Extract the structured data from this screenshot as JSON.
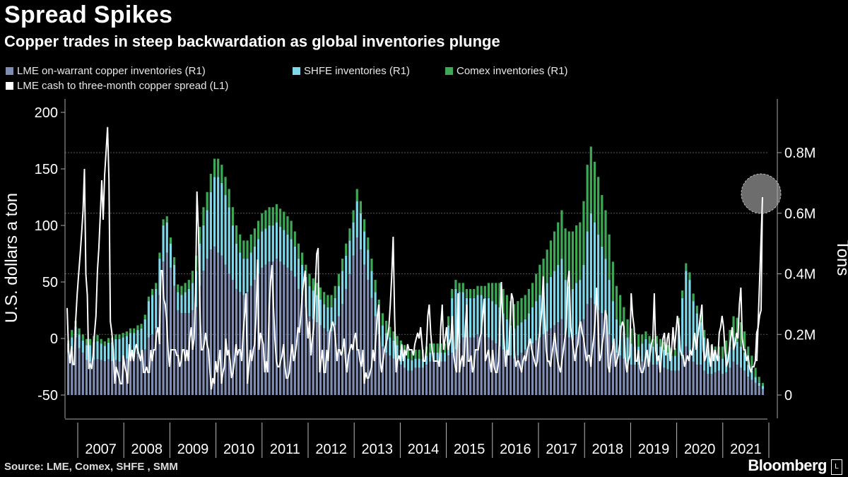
{
  "header": {
    "title": "Spread Spikes",
    "subtitle": "Copper trades in steep backwardation as global inventories plunge"
  },
  "legend": {
    "lme": "LME on-warrant copper inventories (R1)",
    "shfe": "SHFE inventories (R1)",
    "comex": "Comex inventories (R1)",
    "spread": "LME cash to three-month copper spread (L1)"
  },
  "footer": {
    "source": "Source: LME, Comex, SHFE , SMM",
    "brand": "Bloomberg",
    "brand_mark": "L"
  },
  "colors": {
    "lme": "#7f8db3",
    "shfe": "#7fd8ea",
    "comex": "#3da856",
    "spread": "#ffffff",
    "highlight": "#808080"
  },
  "chart_data": {
    "type": "bar",
    "title": "Spread Spikes",
    "subtitle": "Copper trades in steep backwardation as global inventories plunge",
    "ylabel_left": "U.S. dollars a ton",
    "ylabel_right": "Tons",
    "ylim_left": [
      -50,
      200
    ],
    "yticks_left": [
      -50,
      0,
      50,
      100,
      150,
      200
    ],
    "ylim_right": [
      0,
      1000000
    ],
    "yticks_right": [
      {
        "v": 0,
        "label": "0"
      },
      {
        "v": 200000,
        "label": "0.2M"
      },
      {
        "v": 400000,
        "label": "0.4M"
      },
      {
        "v": 600000,
        "label": "0.6M"
      },
      {
        "v": 800000,
        "label": "0.8M"
      }
    ],
    "x_labels": [
      "2007",
      "2008",
      "2009",
      "2010",
      "2011",
      "2012",
      "2013",
      "2014",
      "2015",
      "2016",
      "2017",
      "2018",
      "2019",
      "2020",
      "2021"
    ],
    "start": "2006-09",
    "grid": true,
    "legend_position": "top-left",
    "stacked": true,
    "series_order": [
      "LME on-warrant copper inventories",
      "SHFE inventories",
      "Comex inventories"
    ],
    "inventory_stacks_tons": [
      [
        140000,
        30000,
        10000
      ],
      [
        150000,
        40000,
        25000
      ],
      [
        190000,
        35000,
        20000
      ],
      [
        155000,
        45000,
        20000
      ],
      [
        140000,
        40000,
        20000
      ],
      [
        115000,
        50000,
        20000
      ],
      [
        110000,
        55000,
        20000
      ],
      [
        115000,
        60000,
        20000
      ],
      [
        118000,
        60000,
        20000
      ],
      [
        115000,
        55000,
        15000
      ],
      [
        112000,
        50000,
        15000
      ],
      [
        118000,
        55000,
        15000
      ],
      [
        112000,
        62000,
        15000
      ],
      [
        115000,
        70000,
        15000
      ],
      [
        110000,
        75000,
        15000
      ],
      [
        120000,
        70000,
        15000
      ],
      [
        120000,
        75000,
        15000
      ],
      [
        125000,
        80000,
        15000
      ],
      [
        125000,
        80000,
        15000
      ],
      [
        135000,
        80000,
        15000
      ],
      [
        140000,
        80000,
        15000
      ],
      [
        150000,
        100000,
        15000
      ],
      [
        190000,
        120000,
        15000
      ],
      [
        200000,
        130000,
        20000
      ],
      [
        220000,
        130000,
        20000
      ],
      [
        330000,
        120000,
        20000
      ],
      [
        440000,
        120000,
        20000
      ],
      [
        470000,
        100000,
        20000
      ],
      [
        420000,
        80000,
        20000
      ],
      [
        360000,
        70000,
        25000
      ],
      [
        280000,
        60000,
        25000
      ],
      [
        270000,
        60000,
        30000
      ],
      [
        270000,
        70000,
        30000
      ],
      [
        270000,
        80000,
        30000
      ],
      [
        280000,
        90000,
        40000
      ],
      [
        290000,
        120000,
        50000
      ],
      [
        360000,
        140000,
        55000
      ],
      [
        410000,
        150000,
        60000
      ],
      [
        450000,
        160000,
        60000
      ],
      [
        480000,
        190000,
        60000
      ],
      [
        490000,
        230000,
        60000
      ],
      [
        470000,
        250000,
        60000
      ],
      [
        460000,
        240000,
        60000
      ],
      [
        430000,
        230000,
        60000
      ],
      [
        400000,
        220000,
        60000
      ],
      [
        380000,
        180000,
        60000
      ],
      [
        350000,
        150000,
        60000
      ],
      [
        340000,
        130000,
        60000
      ],
      [
        330000,
        120000,
        60000
      ],
      [
        340000,
        110000,
        60000
      ],
      [
        360000,
        110000,
        60000
      ],
      [
        380000,
        110000,
        60000
      ],
      [
        400000,
        115000,
        60000
      ],
      [
        420000,
        120000,
        60000
      ],
      [
        430000,
        120000,
        60000
      ],
      [
        440000,
        120000,
        60000
      ],
      [
        440000,
        120000,
        60000
      ],
      [
        450000,
        120000,
        60000
      ],
      [
        440000,
        115000,
        60000
      ],
      [
        430000,
        115000,
        60000
      ],
      [
        420000,
        110000,
        60000
      ],
      [
        410000,
        105000,
        60000
      ],
      [
        390000,
        100000,
        50000
      ],
      [
        350000,
        100000,
        50000
      ],
      [
        330000,
        100000,
        40000
      ],
      [
        290000,
        100000,
        40000
      ],
      [
        260000,
        100000,
        40000
      ],
      [
        250000,
        95000,
        40000
      ],
      [
        240000,
        90000,
        40000
      ],
      [
        230000,
        85000,
        40000
      ],
      [
        220000,
        80000,
        40000
      ],
      [
        210000,
        80000,
        40000
      ],
      [
        210000,
        80000,
        40000
      ],
      [
        230000,
        90000,
        40000
      ],
      [
        260000,
        100000,
        40000
      ],
      [
        300000,
        110000,
        40000
      ],
      [
        350000,
        110000,
        40000
      ],
      [
        400000,
        110000,
        40000
      ],
      [
        460000,
        110000,
        40000
      ],
      [
        520000,
        120000,
        40000
      ],
      [
        480000,
        120000,
        40000
      ],
      [
        430000,
        110000,
        40000
      ],
      [
        380000,
        100000,
        40000
      ],
      [
        320000,
        90000,
        40000
      ],
      [
        260000,
        80000,
        40000
      ],
      [
        200000,
        75000,
        40000
      ],
      [
        160000,
        70000,
        40000
      ],
      [
        140000,
        65000,
        40000
      ],
      [
        130000,
        60000,
        35000
      ],
      [
        120000,
        60000,
        30000
      ],
      [
        110000,
        55000,
        30000
      ],
      [
        100000,
        50000,
        30000
      ],
      [
        90000,
        45000,
        30000
      ],
      [
        80000,
        40000,
        30000
      ],
      [
        80000,
        35000,
        30000
      ],
      [
        90000,
        30000,
        30000
      ],
      [
        90000,
        30000,
        30000
      ],
      [
        90000,
        30000,
        30000
      ],
      [
        100000,
        30000,
        30000
      ],
      [
        110000,
        30000,
        30000
      ],
      [
        110000,
        30000,
        30000
      ],
      [
        110000,
        30000,
        30000
      ],
      [
        110000,
        30000,
        30000
      ],
      [
        110000,
        30000,
        30000
      ],
      [
        130000,
        100000,
        30000
      ],
      [
        140000,
        180000,
        30000
      ],
      [
        150000,
        200000,
        30000
      ],
      [
        170000,
        170000,
        30000
      ],
      [
        190000,
        150000,
        30000
      ],
      [
        190000,
        130000,
        30000
      ],
      [
        190000,
        130000,
        30000
      ],
      [
        190000,
        130000,
        30000
      ],
      [
        200000,
        130000,
        30000
      ],
      [
        200000,
        130000,
        30000
      ],
      [
        190000,
        130000,
        40000
      ],
      [
        190000,
        130000,
        50000
      ],
      [
        180000,
        130000,
        60000
      ],
      [
        170000,
        130000,
        70000
      ],
      [
        160000,
        130000,
        80000
      ],
      [
        150000,
        120000,
        80000
      ],
      [
        140000,
        110000,
        80000
      ],
      [
        130000,
        100000,
        80000
      ],
      [
        120000,
        100000,
        80000
      ],
      [
        130000,
        100000,
        80000
      ],
      [
        140000,
        100000,
        80000
      ],
      [
        150000,
        100000,
        80000
      ],
      [
        160000,
        110000,
        80000
      ],
      [
        170000,
        120000,
        80000
      ],
      [
        180000,
        130000,
        90000
      ],
      [
        190000,
        140000,
        100000
      ],
      [
        200000,
        150000,
        100000
      ],
      [
        210000,
        160000,
        110000
      ],
      [
        220000,
        170000,
        120000
      ],
      [
        230000,
        180000,
        130000
      ],
      [
        240000,
        190000,
        140000
      ],
      [
        250000,
        200000,
        160000
      ],
      [
        200000,
        180000,
        170000
      ],
      [
        190000,
        170000,
        180000
      ],
      [
        180000,
        170000,
        190000
      ],
      [
        200000,
        170000,
        190000
      ],
      [
        220000,
        160000,
        190000
      ],
      [
        250000,
        180000,
        210000
      ],
      [
        300000,
        240000,
        220000
      ],
      [
        320000,
        280000,
        220000
      ],
      [
        300000,
        270000,
        200000
      ],
      [
        280000,
        250000,
        190000
      ],
      [
        270000,
        220000,
        170000
      ],
      [
        250000,
        200000,
        160000
      ],
      [
        200000,
        180000,
        150000
      ],
      [
        170000,
        140000,
        130000
      ],
      [
        140000,
        110000,
        110000
      ],
      [
        130000,
        100000,
        100000
      ],
      [
        120000,
        90000,
        80000
      ],
      [
        110000,
        80000,
        60000
      ],
      [
        100000,
        70000,
        50000
      ],
      [
        100000,
        60000,
        45000
      ],
      [
        100000,
        60000,
        40000
      ],
      [
        110000,
        60000,
        30000
      ],
      [
        120000,
        65000,
        25000
      ],
      [
        110000,
        60000,
        25000
      ],
      [
        100000,
        60000,
        25000
      ],
      [
        100000,
        70000,
        25000
      ],
      [
        95000,
        65000,
        25000
      ],
      [
        90000,
        60000,
        25000
      ],
      [
        85000,
        55000,
        25000
      ],
      [
        80000,
        50000,
        25000
      ],
      [
        80000,
        50000,
        25000
      ],
      [
        80000,
        150000,
        25000
      ],
      [
        120000,
        200000,
        25000
      ],
      [
        160000,
        250000,
        25000
      ],
      [
        140000,
        240000,
        25000
      ],
      [
        110000,
        200000,
        25000
      ],
      [
        100000,
        170000,
        25000
      ],
      [
        100000,
        140000,
        25000
      ],
      [
        80000,
        110000,
        25000
      ],
      [
        70000,
        80000,
        25000
      ],
      [
        70000,
        70000,
        25000
      ],
      [
        75000,
        60000,
        25000
      ],
      [
        80000,
        50000,
        30000
      ],
      [
        70000,
        50000,
        40000
      ],
      [
        75000,
        60000,
        45000
      ],
      [
        90000,
        70000,
        55000
      ],
      [
        110000,
        80000,
        70000
      ],
      [
        100000,
        75000,
        80000
      ],
      [
        90000,
        70000,
        80000
      ],
      [
        80000,
        60000,
        70000
      ],
      [
        60000,
        40000,
        60000
      ],
      [
        50000,
        30000,
        50000
      ],
      [
        40000,
        20000,
        30000
      ],
      [
        30000,
        10000,
        20000
      ],
      [
        20000,
        10000,
        10000
      ]
    ],
    "spread_usd_per_ton": [
      27,
      -10,
      -22,
      -7,
      -23,
      -23,
      17,
      40,
      57,
      74,
      92,
      113,
      150,
      57,
      38,
      -27,
      -23,
      -27,
      -15,
      5,
      20,
      60,
      80,
      110,
      140,
      105,
      145,
      165,
      187,
      140,
      15,
      5,
      -10,
      -40,
      -25,
      -30,
      -35,
      -40,
      -40,
      -15,
      -25,
      -30,
      -40,
      -5,
      -20,
      -10,
      -20,
      -10,
      -5,
      -10,
      -15,
      -20,
      -10,
      -30,
      -30,
      -25,
      -30,
      -30,
      -10,
      -20,
      -10,
      -10,
      5,
      10,
      -5,
      60,
      60,
      35,
      30,
      15,
      -10,
      -25,
      -10,
      -10,
      -10,
      -10,
      -15,
      -15,
      -25,
      -20,
      -10,
      -10,
      -20,
      -10,
      -20,
      0,
      10,
      -10,
      0,
      40,
      130,
      95,
      30,
      -10,
      -10,
      -5,
      5,
      -5,
      -10,
      -30,
      -45,
      -35,
      -40,
      -20,
      -30,
      -20,
      -10,
      -40,
      -30,
      -25,
      0,
      -15,
      -10,
      -20,
      -35,
      -30,
      -20,
      -5,
      -15,
      -10,
      -10,
      -20,
      5,
      20,
      40,
      -40,
      -25,
      -10,
      -20,
      -10,
      -5,
      20,
      70,
      -10,
      5,
      0,
      -5,
      -30,
      -20,
      -30,
      25,
      50,
      65,
      30,
      0,
      -20,
      -25,
      -25,
      -20,
      -15,
      -5,
      -25,
      -35,
      -35,
      -30,
      -15,
      -5,
      -20,
      -15,
      -5,
      10,
      5,
      20,
      40,
      50,
      60,
      20,
      0,
      15,
      -15,
      0,
      10,
      45,
      75,
      80,
      -30,
      -20,
      -10,
      -30,
      -30,
      -10,
      -20,
      5,
      10,
      15,
      10,
      0,
      -20,
      -10,
      -10,
      -15,
      -10,
      0,
      -20,
      -30,
      -15,
      -10,
      -5,
      -10,
      0,
      5,
      -10,
      -10,
      -20,
      -25,
      -10,
      -40,
      -30,
      -35,
      -35,
      -30,
      -25,
      -10,
      -20,
      0,
      20,
      30,
      -20,
      -30,
      -20,
      -10,
      -5,
      0,
      10,
      30,
      55,
      90,
      20,
      -30,
      -20,
      -15,
      -20,
      -5,
      -20,
      -10,
      -15,
      -5,
      -10,
      -10,
      -10,
      -15,
      -5,
      0,
      5,
      0,
      10,
      -5,
      -20,
      -20,
      -10,
      20,
      30,
      5,
      -10,
      -20,
      -20,
      -20,
      -20,
      -25,
      10,
      30,
      -10,
      0,
      10,
      -10,
      -5,
      0,
      20,
      -15,
      -25,
      -30,
      40,
      -30,
      -20,
      -15,
      -25,
      10,
      30,
      -20,
      -20,
      -15,
      -30,
      -25,
      -10,
      -10,
      -10,
      0,
      5,
      20,
      35,
      -20,
      -15,
      -10,
      -20,
      -30,
      -10,
      -25,
      -30,
      -30,
      -20,
      10,
      50,
      15,
      -5,
      -25,
      -10,
      -15,
      15,
      40,
      35,
      -10,
      -25,
      -20,
      -20,
      -25,
      -30,
      -20,
      -15,
      -20,
      -10,
      -5,
      0,
      -10,
      -15,
      -20,
      -25,
      -20,
      0,
      10,
      25,
      55,
      20,
      -10,
      -20,
      -20,
      -25,
      -15,
      -5,
      5,
      -10,
      -20,
      -25,
      -30,
      -20,
      -10,
      0,
      10,
      50,
      60,
      10,
      0,
      -10,
      -20,
      -10,
      -5,
      10,
      15,
      5,
      0,
      -10,
      -20,
      -15,
      -15,
      -25,
      -10,
      0,
      15,
      45,
      15,
      -20,
      -15,
      -5,
      5,
      25,
      20,
      -25,
      -30,
      -15,
      -10,
      0,
      -25,
      -20,
      -15,
      -5,
      10,
      15,
      10,
      -20,
      -30,
      -20,
      -15,
      40,
      20,
      10,
      -20,
      -20,
      -10,
      -25,
      -30,
      -30,
      -25,
      -15,
      -10,
      -25,
      -15,
      -5,
      0,
      40,
      -10,
      -20,
      -15,
      -30,
      -15,
      0,
      5,
      -15,
      0,
      5,
      -20,
      -10,
      10,
      -10,
      5,
      20,
      10,
      -10,
      -15,
      -15,
      -25,
      -20,
      -15,
      -20,
      -10,
      -15,
      -5,
      5,
      -10,
      0,
      10,
      20,
      30,
      -10,
      -20,
      -15,
      0,
      -15,
      -25,
      -5,
      -20,
      -10,
      -15,
      -20,
      5,
      10,
      20,
      10,
      -10,
      -25,
      -20,
      -10,
      0,
      10,
      -10,
      -5,
      5,
      0,
      30,
      45,
      0,
      -10,
      -10,
      -20,
      -15,
      -25,
      -30,
      -25,
      -25,
      -20,
      5,
      10,
      20,
      25,
      125
    ],
    "highlight_point": {
      "x_year_fraction": 2021.62,
      "y": 125
    }
  }
}
